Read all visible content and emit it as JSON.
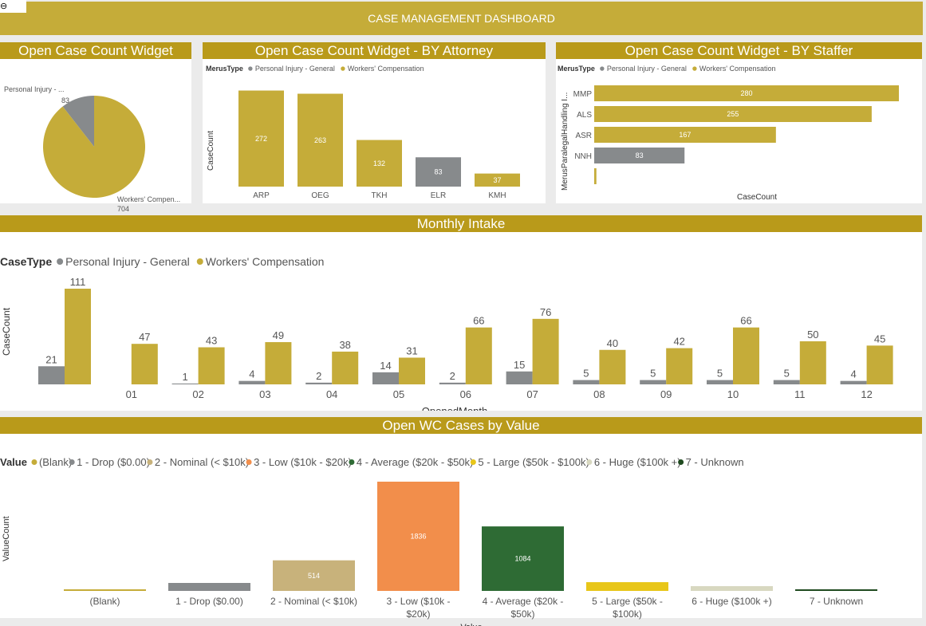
{
  "header": {
    "title": "CASE MANAGEMENT DASHBOARD",
    "back_icon": "back-arrow-icon"
  },
  "colors": {
    "gold": "#c5ac39",
    "gray": "#878a8c",
    "title_bar": "#b99a1a"
  },
  "chart_data": [
    {
      "type": "pie",
      "title": "Open Case Count Widget",
      "slices": [
        {
          "label": "Personal Injury - ...",
          "value": 83,
          "color": "#878a8c"
        },
        {
          "label": "Workers' Compen...",
          "value": 704,
          "color": "#c5ac39"
        }
      ]
    },
    {
      "type": "bar",
      "title": "Open Case Count Widget - BY Attorney",
      "legend_title": "MerusType",
      "legend": [
        "Personal Injury - General",
        "Workers' Compensation"
      ],
      "ylabel": "CaseCount",
      "categories": [
        "ARP",
        "OEG",
        "TKH",
        "ELR",
        "KMH"
      ],
      "values": [
        272,
        263,
        132,
        83,
        37
      ],
      "series_of": [
        "Workers' Compensation",
        "Workers' Compensation",
        "Workers' Compensation",
        "Personal Injury - General",
        "Workers' Compensation"
      ]
    },
    {
      "type": "bar",
      "orientation": "horizontal",
      "title": "Open Case Count Widget - BY Staffer",
      "legend_title": "MerusType",
      "legend": [
        "Personal Injury - General",
        "Workers' Compensation"
      ],
      "xlabel": "CaseCount",
      "ylabel": "MerusParalegalHandling I...",
      "categories": [
        "MMP",
        "ALS",
        "ASR",
        "NNH",
        ""
      ],
      "values": [
        280,
        255,
        167,
        83,
        2
      ],
      "series_of": [
        "Workers' Compensation",
        "Workers' Compensation",
        "Workers' Compensation",
        "Personal Injury - General",
        "Workers' Compensation"
      ]
    },
    {
      "type": "bar",
      "title": "Monthly Intake",
      "legend_title": "CaseType",
      "xlabel": "OpenedMonth",
      "ylabel": "CaseCount",
      "categories": [
        "",
        "01",
        "02",
        "03",
        "04",
        "05",
        "06",
        "07",
        "08",
        "09",
        "10",
        "11",
        "12"
      ],
      "series": [
        {
          "name": "Personal Injury - General",
          "color": "#878a8c",
          "values": [
            21,
            null,
            1,
            4,
            2,
            14,
            2,
            15,
            5,
            5,
            5,
            5,
            4
          ]
        },
        {
          "name": "Workers' Compensation",
          "color": "#c5ac39",
          "values": [
            111,
            47,
            43,
            49,
            38,
            31,
            66,
            76,
            40,
            42,
            66,
            50,
            45
          ]
        }
      ]
    },
    {
      "type": "bar",
      "title": "Open WC Cases by Value",
      "legend_title": "Value",
      "xlabel": "Value",
      "ylabel": "ValueCount",
      "categories": [
        "(Blank)",
        "1 - Drop ($0.00)",
        "2 - Nominal (< $10k)",
        "3 - Low ($10k - $20k)",
        "4 - Average ($20k - $50k)",
        "5 - Large ($50k - $100k)",
        "6 - Huge ($100k +)",
        "7 - Unknown"
      ],
      "values": [
        10,
        134,
        514,
        1836,
        1084,
        147,
        80,
        25
      ],
      "labels": [
        "",
        "",
        "514",
        "1836",
        "1084",
        "",
        "",
        ""
      ],
      "colors": [
        "#c5ac39",
        "#878a8c",
        "#c8b27b",
        "#f28e4b",
        "#2e6b34",
        "#e8c619",
        "#d8d8c0",
        "#1f4a1f"
      ]
    }
  ]
}
